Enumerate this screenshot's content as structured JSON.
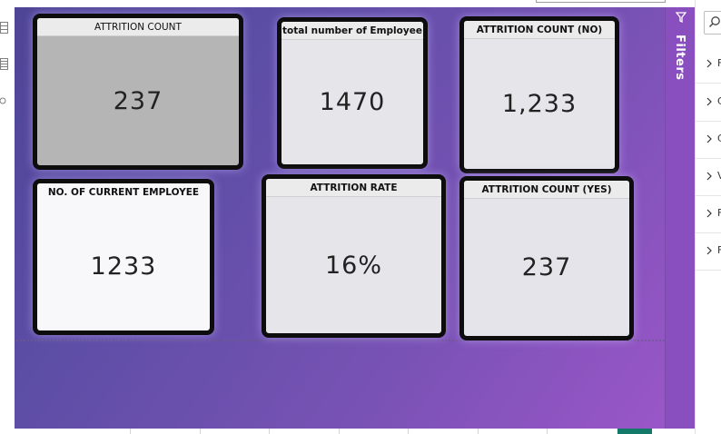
{
  "cards": [
    {
      "title": "ATTRITION COUNT",
      "value": "237",
      "bg": "#b5b5b5"
    },
    {
      "title": "total number of Employee",
      "value": "1470",
      "bg": "#e6e6ea"
    },
    {
      "title": "ATTRITION COUNT (NO)",
      "value": "1,233",
      "bg": "#e5e5ea"
    },
    {
      "title": "NO. OF CURRENT EMPLOYEE",
      "value": "1233",
      "bg": "#f8f8fa"
    },
    {
      "title": "ATTRITION RATE",
      "value": "16%",
      "bg": "#e6e6ea"
    },
    {
      "title": "ATTRITION COUNT (YES)",
      "value": "237",
      "bg": "#e5e4ea"
    }
  ],
  "filters": {
    "label": "Filters",
    "icon": "funnel-icon"
  },
  "fields_pane": {
    "search_icon": "search-icon",
    "rows": [
      {
        "letter": "F"
      },
      {
        "letter": "C"
      },
      {
        "letter": "C"
      },
      {
        "letter": "V"
      },
      {
        "letter": "F"
      },
      {
        "letter": "F"
      }
    ]
  },
  "colors": {
    "canvas_start": "#4e4596",
    "canvas_end": "#9a56c8",
    "filters_strip": "#8a4fbe",
    "active_tab": "#137a6a"
  }
}
